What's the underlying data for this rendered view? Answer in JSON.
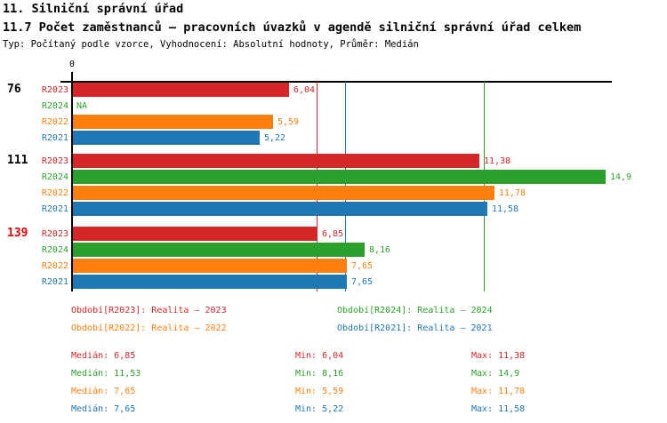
{
  "header": {
    "title_line1": "11. Silniční správní úřad",
    "title_line2": "11.7 Počet zaměstnanců – pracovních úvazků v agendě silniční správní úřad celkem",
    "meta_line": "Typ: Počítaný podle vzorce, Vyhodnocení: Absolutní hodnoty, Průměr: Medián"
  },
  "chart_data": {
    "type": "bar",
    "orientation": "horizontal",
    "title": "11.7 Počet zaměstnanců – pracovních úvazků v agendě silniční správní úřad celkem",
    "x_axis": {
      "origin_tick_label": "0",
      "min": 0,
      "max_visible": 15.1,
      "gridlines": false
    },
    "series_order": [
      "R2023",
      "R2024",
      "R2022",
      "R2021"
    ],
    "series_colors": {
      "R2023": "#d62728",
      "R2024": "#2ca02c",
      "R2022": "#ff7f0e",
      "R2021": "#1f77b4"
    },
    "groups": [
      {
        "label": "76",
        "label_color": "#000000",
        "values": {
          "R2023": 6.04,
          "R2024": null,
          "R2022": 5.59,
          "R2021": 5.22
        },
        "display": {
          "R2023": "6,04",
          "R2024": "NA",
          "R2022": "5,59",
          "R2021": "5,22"
        }
      },
      {
        "label": "111",
        "label_color": "#000000",
        "values": {
          "R2023": 11.38,
          "R2024": 14.9,
          "R2022": 11.78,
          "R2021": 11.58
        },
        "display": {
          "R2023": "11,38",
          "R2024": "14,9",
          "R2022": "11,78",
          "R2021": "11,58"
        }
      },
      {
        "label": "139",
        "label_color": "#ee0000",
        "values": {
          "R2023": 6.85,
          "R2024": 8.16,
          "R2022": 7.65,
          "R2021": 7.65
        },
        "display": {
          "R2023": "6,85",
          "R2024": "8,16",
          "R2022": "7,65",
          "R2021": "7,65"
        }
      }
    ],
    "median_lines": [
      {
        "series": "R2023",
        "value": 6.85
      },
      {
        "series": "R2024",
        "value": 11.53
      },
      {
        "series": "R2022",
        "value": 7.65
      },
      {
        "series": "R2021",
        "value": 7.65
      }
    ],
    "stats_numeric": [
      {
        "series": "R2023",
        "median": 6.85,
        "min": 6.04,
        "max": 11.38
      },
      {
        "series": "R2024",
        "median": 11.53,
        "min": 8.16,
        "max": 14.9
      },
      {
        "series": "R2022",
        "median": 7.65,
        "min": 5.59,
        "max": 11.78
      },
      {
        "series": "R2021",
        "median": 7.65,
        "min": 5.22,
        "max": 11.58
      }
    ]
  },
  "legend": {
    "items": [
      {
        "series": "R2023",
        "label": "Období[R2023]: Realita – 2023"
      },
      {
        "series": "R2024",
        "label": "Období[R2024]: Realita – 2024"
      },
      {
        "series": "R2022",
        "label": "Období[R2022]: Realita – 2022"
      },
      {
        "series": "R2021",
        "label": "Období[R2021]: Realita – 2021"
      }
    ]
  },
  "stats": {
    "rows": [
      {
        "series": "R2023",
        "median": "Medián: 6,85",
        "min": "Min: 6,04",
        "max": "Max: 11,38"
      },
      {
        "series": "R2024",
        "median": "Medián: 11,53",
        "min": "Min: 8,16",
        "max": "Max: 14,9"
      },
      {
        "series": "R2022",
        "median": "Medián: 7,65",
        "min": "Min: 5,59",
        "max": "Max: 11,78"
      },
      {
        "series": "R2021",
        "median": "Medián: 7,65",
        "min": "Min: 5,22",
        "max": "Max: 11,58"
      }
    ]
  },
  "colors": {
    "red": "#d62728",
    "green": "#2ca02c",
    "orange": "#ff7f0e",
    "blue": "#1f77b4",
    "axis": "#000000",
    "group_139_label": "#ee0000",
    "background": "#ffffff"
  }
}
